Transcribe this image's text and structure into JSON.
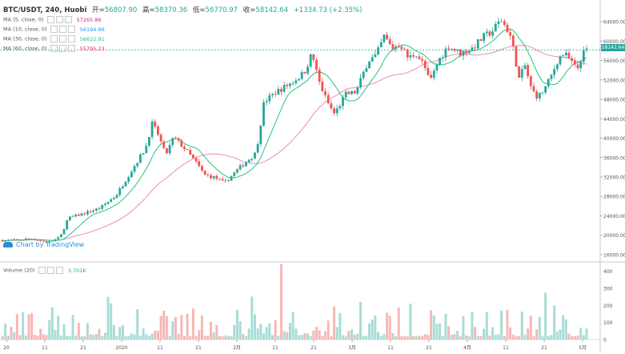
{
  "header": {
    "symbol": "BTC/USDT, 240, Huobi",
    "open_label": "开=",
    "open": "56807.90",
    "high_label": "高=",
    "high": "58370.36",
    "low_label": "低=",
    "low": "56770.97",
    "close_label": "收=",
    "close": "58142.64",
    "change": "+1334.73 (+2.35%)"
  },
  "indicators": [
    {
      "label": "MA (5, close, 0)",
      "value": "57265.86",
      "color": "#e91e8c"
    },
    {
      "label": "MA (10, close, 0)",
      "value": "56194.86",
      "color": "#2196f3"
    },
    {
      "label": "MA (30, close, 0)",
      "value": "56622.91",
      "color": "#26c281"
    },
    {
      "label": "MA (60, close, 0)",
      "value": "55795.23",
      "color": "#e91e63"
    }
  ],
  "volume_indicator": {
    "label": "Volume (20)",
    "value": "3.701K"
  },
  "watermark": "Chart by TradingView",
  "price_tag": "58142.64",
  "colors": {
    "up": "#26a69a",
    "down": "#ef5350",
    "ma_short": "#26c281",
    "ma_long": "#e88bc0"
  },
  "chart_data": {
    "type": "candlestick",
    "x_labels": [
      "20",
      "11",
      "21",
      "2020",
      "11",
      "21",
      "2月",
      "11",
      "21",
      "3月",
      "11",
      "21",
      "4月",
      "11",
      "21",
      "5月"
    ],
    "y_ticks": [
      16000,
      20000,
      24000,
      28000,
      32000,
      36000,
      40000,
      44000,
      48000,
      52000,
      56000,
      60000,
      64000
    ],
    "y_tick_labels": [
      "16000.00",
      "20000.00",
      "24000.00",
      "28000.00",
      "32000.00",
      "36000.00",
      "40000.00",
      "44000.00",
      "48000.00",
      "52000.00",
      "56000.00",
      "60000.00",
      "64000.00"
    ],
    "ylim": [
      14500,
      66500
    ],
    "volume_ticks": [
      0,
      100,
      200,
      300,
      400
    ],
    "volume_tick_labels": [
      "0",
      "100",
      "200",
      "300",
      "400"
    ],
    "volume_max": 440,
    "anchors": [
      [
        0,
        19000
      ],
      [
        15,
        18900
      ],
      [
        40,
        19300
      ],
      [
        60,
        18500
      ],
      [
        75,
        19500
      ],
      [
        85,
        23500
      ],
      [
        105,
        24500
      ],
      [
        125,
        25600
      ],
      [
        145,
        28200
      ],
      [
        165,
        33500
      ],
      [
        182,
        38000
      ],
      [
        190,
        43000
      ],
      [
        197,
        41000
      ],
      [
        207,
        36500
      ],
      [
        217,
        40200
      ],
      [
        230,
        38000
      ],
      [
        245,
        35000
      ],
      [
        255,
        32500
      ],
      [
        270,
        31800
      ],
      [
        280,
        30700
      ],
      [
        300,
        34000
      ],
      [
        320,
        37000
      ],
      [
        330,
        47500
      ],
      [
        345,
        49500
      ],
      [
        365,
        51500
      ],
      [
        380,
        53500
      ],
      [
        390,
        57500
      ],
      [
        398,
        52000
      ],
      [
        405,
        49000
      ],
      [
        412,
        46500
      ],
      [
        418,
        45000
      ],
      [
        432,
        49000
      ],
      [
        445,
        49500
      ],
      [
        460,
        56000
      ],
      [
        470,
        57000
      ],
      [
        480,
        61000
      ],
      [
        490,
        58500
      ],
      [
        500,
        59500
      ],
      [
        510,
        56500
      ],
      [
        520,
        57500
      ],
      [
        530,
        55000
      ],
      [
        537,
        51500
      ],
      [
        548,
        56000
      ],
      [
        560,
        59000
      ],
      [
        575,
        57500
      ],
      [
        590,
        58500
      ],
      [
        605,
        61000
      ],
      [
        615,
        62000
      ],
      [
        626,
        64500
      ],
      [
        637,
        61500
      ],
      [
        644,
        56500
      ],
      [
        648,
        52000
      ],
      [
        656,
        55000
      ],
      [
        664,
        50000
      ],
      [
        672,
        48500
      ],
      [
        680,
        50000
      ],
      [
        688,
        52500
      ],
      [
        698,
        56500
      ],
      [
        705,
        57500
      ],
      [
        715,
        55500
      ],
      [
        721,
        54000
      ],
      [
        727,
        57000
      ],
      [
        732,
        58100
      ]
    ],
    "ohlc_series": {
      "x_range": [
        3,
        733
      ],
      "count": 200
    },
    "current_price": 58142.64,
    "ma_short_period": 10,
    "ma_long_period": 30
  }
}
